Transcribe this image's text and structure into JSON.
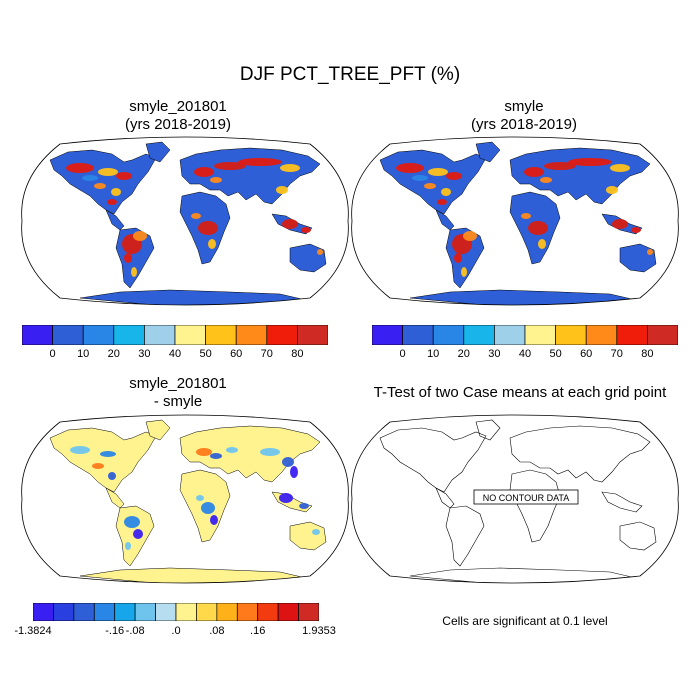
{
  "figure": {
    "title": "DJF PCT_TREE_PFT (%)"
  },
  "panels": {
    "top_left": {
      "title_line1": "smyle_201801",
      "title_line2": "(yrs 2018-2019)"
    },
    "top_right": {
      "title_line1": "smyle",
      "title_line2": "(yrs 2018-2019)"
    },
    "bottom_left": {
      "title_line1": "smyle_201801",
      "title_line2": "- smyle"
    },
    "bottom_right": {
      "title": "T-Test of two Case means at each grid point",
      "no_data_label": "NO CONTOUR DATA",
      "footnote": "Cells are significant at 0.1 level"
    }
  },
  "colorbars": {
    "absolute": {
      "colors": [
        "#3a1ff2",
        "#2f5fd6",
        "#2a86e6",
        "#17b5ea",
        "#9fd0ea",
        "#fff38f",
        "#ffc21b",
        "#ff8a1a",
        "#f01d0b",
        "#cf2b24"
      ],
      "tick_labels": [
        "0",
        "10",
        "20",
        "30",
        "40",
        "50",
        "60",
        "70",
        "80"
      ]
    },
    "difference": {
      "colors": [
        "#3a1ff2",
        "#2a3fe0",
        "#2f5fd6",
        "#2a86e6",
        "#17a6ea",
        "#6fc4ee",
        "#b6ddf0",
        "#fff38f",
        "#ffd94a",
        "#ffb11a",
        "#ff7a1a",
        "#f23b0e",
        "#dd1212",
        "#cf2b24"
      ],
      "tick_labels": [
        "-1.3824",
        "-.16",
        "-.08",
        ".0",
        ".08",
        ".16",
        "1.9353"
      ]
    }
  }
}
